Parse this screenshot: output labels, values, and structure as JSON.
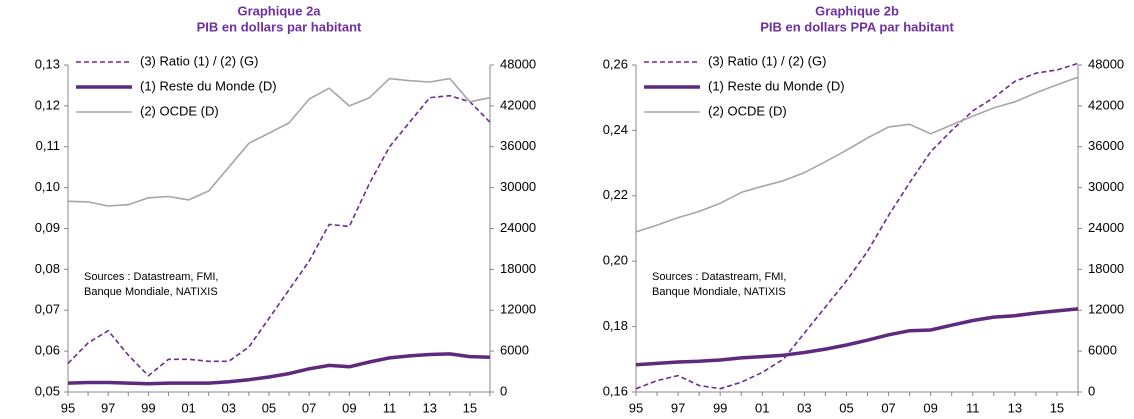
{
  "chart_data": [
    {
      "type": "line",
      "title": "Graphique 2a",
      "subtitle": "PIB en dollars  par habitant",
      "categories": [
        "95",
        null,
        "97",
        null,
        "99",
        null,
        "01",
        null,
        "03",
        null,
        "05",
        null,
        "07",
        null,
        "09",
        null,
        "11",
        null,
        "13",
        null,
        "15",
        null
      ],
      "series": [
        {
          "name": "(3) Ratio (1) / (2) (G)",
          "color": "#6b2c91",
          "style": "dashed",
          "axis": "y",
          "values": [
            0.057,
            0.062,
            0.065,
            0.059,
            0.054,
            0.058,
            0.058,
            0.0575,
            0.0575,
            0.061,
            0.068,
            0.075,
            0.082,
            0.091,
            0.0905,
            0.101,
            0.11,
            0.116,
            0.122,
            0.1225,
            0.121,
            0.116
          ]
        },
        {
          "name": "(1) Reste du Monde (D)",
          "color": "#5e2a7e",
          "style": "thick",
          "axis": "y2",
          "values": [
            1300,
            1400,
            1400,
            1300,
            1200,
            1300,
            1300,
            1300,
            1500,
            1800,
            2200,
            2700,
            3400,
            3900,
            3700,
            4400,
            5000,
            5300,
            5500,
            5600,
            5200,
            5100
          ]
        },
        {
          "name": "(2) OCDE (D)",
          "color": "#a6a6a6",
          "style": "thin",
          "axis": "y2",
          "values": [
            28000,
            27900,
            27300,
            27500,
            28500,
            28700,
            28200,
            29500,
            33000,
            36500,
            38000,
            39500,
            43000,
            44600,
            42000,
            43200,
            46000,
            45700,
            45500,
            46000,
            42600,
            43200
          ]
        }
      ],
      "ylim": [
        0.05,
        0.13
      ],
      "yticks": [
        {
          "value": 0.05,
          "label": "0,05"
        },
        {
          "value": 0.06,
          "label": "0,06"
        },
        {
          "value": 0.07,
          "label": "0,07"
        },
        {
          "value": 0.08,
          "label": "0,08"
        },
        {
          "value": 0.09,
          "label": "0,09"
        },
        {
          "value": 0.1,
          "label": "0,10"
        },
        {
          "value": 0.11,
          "label": "0,11"
        },
        {
          "value": 0.12,
          "label": "0,12"
        },
        {
          "value": 0.13,
          "label": "0,13"
        }
      ],
      "y2lim": [
        0,
        48000
      ],
      "y2ticks": [
        0,
        6000,
        12000,
        18000,
        24000,
        30000,
        36000,
        42000,
        48000
      ],
      "annotation": [
        "Sources : Datastream, FMI,",
        "Banque Mondiale, NATIXIS"
      ],
      "legend": "upper left",
      "grid": false
    },
    {
      "type": "line",
      "title": "Graphique 2b",
      "subtitle": "PIB en dollars PPA par habitant",
      "categories": [
        "95",
        null,
        "97",
        null,
        "99",
        null,
        "01",
        null,
        "03",
        null,
        "05",
        null,
        "07",
        null,
        "09",
        null,
        "11",
        null,
        "13",
        null,
        "15",
        null
      ],
      "series": [
        {
          "name": "(3) Ratio (1) / (2) (G)",
          "color": "#6b2c91",
          "style": "dashed",
          "axis": "y",
          "values": [
            0.161,
            0.1635,
            0.165,
            0.162,
            0.161,
            0.163,
            0.166,
            0.17,
            0.178,
            0.186,
            0.194,
            0.203,
            0.214,
            0.224,
            0.2335,
            0.24,
            0.246,
            0.25,
            0.255,
            0.2575,
            0.2585,
            0.2605
          ]
        },
        {
          "name": "(1) Reste du Monde (D)",
          "color": "#5e2a7e",
          "style": "thick",
          "axis": "y2",
          "values": [
            4000,
            4200,
            4400,
            4500,
            4700,
            5000,
            5200,
            5400,
            5800,
            6300,
            6900,
            7600,
            8400,
            9000,
            9100,
            9800,
            10500,
            11000,
            11200,
            11600,
            11900,
            12200
          ]
        },
        {
          "name": "(2) OCDE (D)",
          "color": "#a6a6a6",
          "style": "thin",
          "axis": "y2",
          "values": [
            23500,
            24500,
            25600,
            26500,
            27700,
            29300,
            30200,
            31000,
            32200,
            33800,
            35500,
            37300,
            38900,
            39300,
            37900,
            39200,
            40500,
            41700,
            42600,
            43900,
            45100,
            46200
          ]
        }
      ],
      "ylim": [
        0.16,
        0.26
      ],
      "yticks": [
        {
          "value": 0.16,
          "label": "0,16"
        },
        {
          "value": 0.18,
          "label": "0,18"
        },
        {
          "value": 0.2,
          "label": "0,20"
        },
        {
          "value": 0.22,
          "label": "0,22"
        },
        {
          "value": 0.24,
          "label": "0,24"
        },
        {
          "value": 0.26,
          "label": "0,26"
        }
      ],
      "y2lim": [
        0,
        48000
      ],
      "y2ticks": [
        0,
        6000,
        12000,
        18000,
        24000,
        30000,
        36000,
        42000,
        48000
      ],
      "annotation": [
        "Sources : Datastream, FMI,",
        "Banque Mondiale, NATIXIS"
      ],
      "legend": "upper left",
      "grid": false
    }
  ]
}
